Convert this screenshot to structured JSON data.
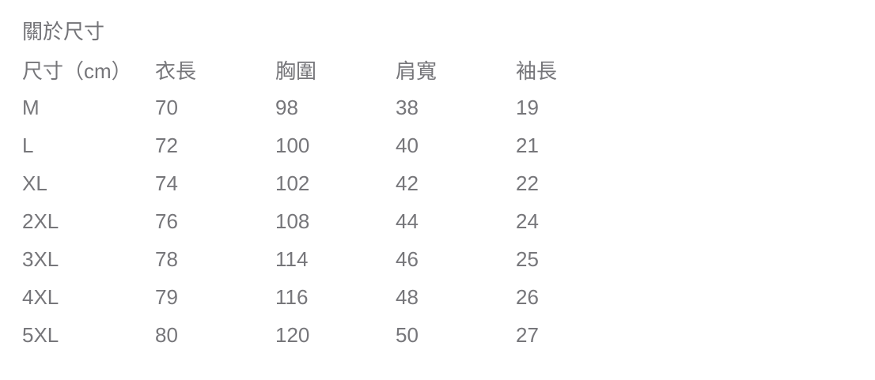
{
  "section": {
    "title": "關於尺寸"
  },
  "size_table": {
    "columns": [
      "尺寸（cm）",
      "衣長",
      "胸圍",
      "肩寬",
      "袖長"
    ],
    "rows": [
      [
        "M",
        "70",
        "98",
        "38",
        "19"
      ],
      [
        "L",
        "72",
        "100",
        "40",
        "21"
      ],
      [
        "XL",
        "74",
        "102",
        "42",
        "22"
      ],
      [
        "2XL",
        "76",
        "108",
        "44",
        "24"
      ],
      [
        "3XL",
        "78",
        "114",
        "46",
        "25"
      ],
      [
        "4XL",
        "79",
        "116",
        "48",
        "26"
      ],
      [
        "5XL",
        "80",
        "120",
        "50",
        "27"
      ]
    ]
  },
  "colors": {
    "background": "#ffffff",
    "text": "#76767a",
    "title_text": "#737377"
  }
}
